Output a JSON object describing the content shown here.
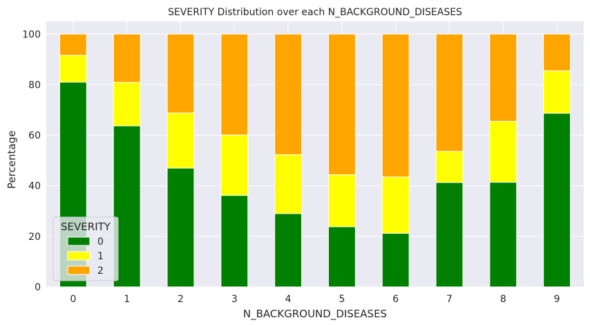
{
  "chart_data": {
    "type": "bar",
    "stacked": true,
    "title": "SEVERITY Distribution over each N_BACKGROUND_DISEASES",
    "xlabel": "N_BACKGROUND_DISEASES",
    "ylabel": "Percentage",
    "categories": [
      "0",
      "1",
      "2",
      "3",
      "4",
      "5",
      "6",
      "7",
      "8",
      "9"
    ],
    "ylim": [
      0,
      100
    ],
    "yticks": [
      0,
      20,
      40,
      60,
      80,
      100
    ],
    "grid": true,
    "legend_title": "SEVERITY",
    "legend_position": "lower-left",
    "series": [
      {
        "name": "0",
        "color": "#008000",
        "values": [
          81.0,
          63.7,
          47.0,
          36.2,
          29.0,
          23.8,
          21.2,
          41.3,
          41.4,
          68.7
        ]
      },
      {
        "name": "1",
        "color": "#ffff00",
        "values": [
          10.6,
          17.2,
          21.8,
          23.9,
          23.3,
          20.6,
          22.3,
          12.3,
          24.1,
          16.8
        ]
      },
      {
        "name": "2",
        "color": "#ffa500",
        "values": [
          8.4,
          19.1,
          31.2,
          39.9,
          47.7,
          55.6,
          56.5,
          46.4,
          34.5,
          14.5
        ]
      }
    ]
  }
}
